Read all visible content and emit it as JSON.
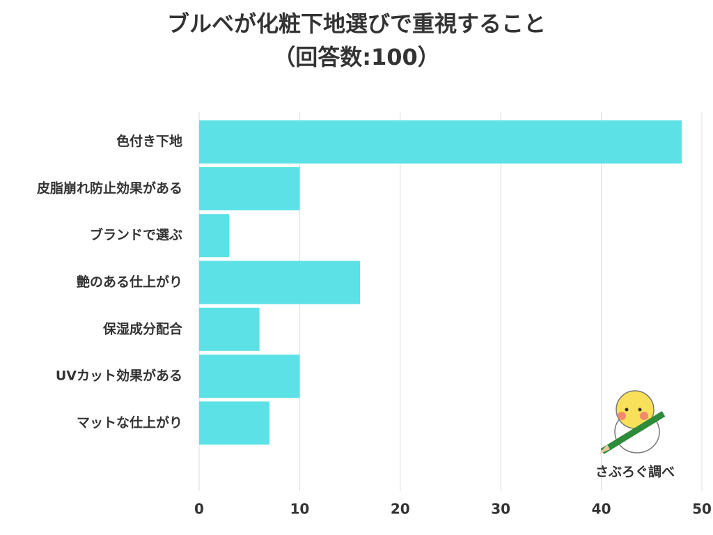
{
  "chart_data": {
    "type": "bar",
    "orientation": "horizontal",
    "title": "ブルベが化粧下地選びで重視すること",
    "subtitle": "（回答数:100）",
    "categories": [
      "色付き下地",
      "皮脂崩れ防止効果がある",
      "ブランドで選ぶ",
      "艶のある仕上がり",
      "保湿成分配合",
      "UVカット効果がある",
      "マットな仕上がり"
    ],
    "values": [
      48,
      10,
      3,
      16,
      6,
      10,
      7
    ],
    "color": "#5ce1e6",
    "xlim": [
      0,
      50
    ],
    "xticks": [
      0,
      10,
      20,
      30,
      40,
      50
    ],
    "grid": true,
    "annotation": "さぶろぐ調べ"
  }
}
